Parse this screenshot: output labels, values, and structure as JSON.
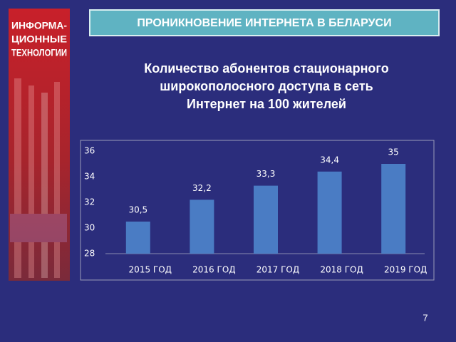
{
  "side_panel": {
    "lines": [
      "ИНФОРМА-",
      "ЦИОННЫЕ",
      "ТЕХНОЛОГИИ"
    ]
  },
  "header": {
    "title": "ПРОНИКНОВЕНИЕ ИНТЕРНЕТА В БЕЛАРУСИ"
  },
  "page_number": "7",
  "chart_data": {
    "type": "bar",
    "title": [
      "Количество абонентов стационарного",
      "широкополосного доступа в сеть",
      "Интернет на 100 жителей"
    ],
    "categories": [
      "2015 ГОД",
      "2016 ГОД",
      "2017 ГОД",
      "2018 ГОД",
      "2019 ГОД"
    ],
    "values": [
      30.5,
      32.2,
      33.3,
      34.4,
      35
    ],
    "value_labels": [
      "30,5",
      "32,2",
      "33,3",
      "34,4",
      "35"
    ],
    "color": "#4a7cc4",
    "ylim": [
      28,
      36
    ],
    "yticks": [
      28,
      30,
      32,
      34,
      36
    ],
    "grid": false
  }
}
